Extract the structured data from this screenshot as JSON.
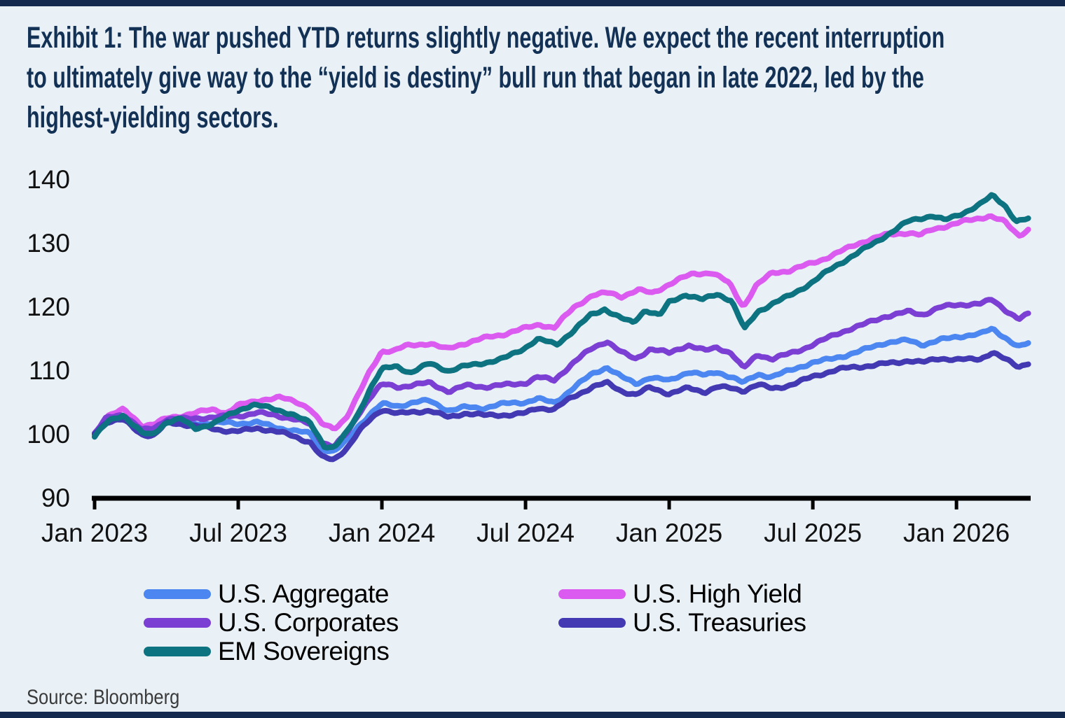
{
  "exhibit_title": {
    "lines": [
      "Exhibit 1: The war pushed YTD returns slightly negative. We expect the recent interruption",
      "to ultimately give way to the “yield is destiny” bull run that began in late 2022, led by the",
      "highest-yielding sectors."
    ]
  },
  "source": "Source: Bloomberg",
  "colors": {
    "background": "#e9f1f7",
    "accent_navy": "#13294d",
    "title_text": "#133155",
    "axis": "#000000",
    "tick_text": "#111111",
    "legend_text": "#000000",
    "source_text": "#3a3a3a"
  },
  "chart_data": {
    "type": "line",
    "title": "",
    "xlabel": "",
    "ylabel": "",
    "x_unit": "months since Jan 2023 (0 = Jan 2023)",
    "ylim": [
      90,
      140
    ],
    "y_ticks": [
      140,
      130,
      120,
      110,
      100,
      90
    ],
    "x_tick_months": [
      0,
      6,
      12,
      18,
      24,
      30,
      36
    ],
    "x_tick_labels": [
      "Jan 2023",
      "Jul 2023",
      "Jan 2024",
      "Jul 2024",
      "Jan 2025",
      "Jul 2025",
      "Jan 2026"
    ],
    "grid": false,
    "legend_position": "bottom",
    "legend_columns": [
      [
        0,
        2,
        4
      ],
      [
        1,
        3
      ]
    ],
    "series": [
      {
        "name": "U.S. Aggregate",
        "color": "#4C86F0",
        "points": [
          [
            0,
            100
          ],
          [
            0.5,
            102.1
          ],
          [
            1.2,
            102.7
          ],
          [
            2,
            100.7
          ],
          [
            2.5,
            101.0
          ],
          [
            3,
            102.2
          ],
          [
            4,
            101.9
          ],
          [
            5,
            101.7
          ],
          [
            6,
            101.6
          ],
          [
            6.8,
            102.0
          ],
          [
            7.5,
            101.4
          ],
          [
            8.3,
            100.7
          ],
          [
            9,
            100.0
          ],
          [
            9.5,
            97.6
          ],
          [
            10,
            97.2
          ],
          [
            10.6,
            99.3
          ],
          [
            11,
            101.4
          ],
          [
            11.5,
            103.4
          ],
          [
            12,
            104.9
          ],
          [
            12.7,
            104.4
          ],
          [
            13.4,
            104.9
          ],
          [
            14,
            105.2
          ],
          [
            14.8,
            103.9
          ],
          [
            15.5,
            104.5
          ],
          [
            16.3,
            104.2
          ],
          [
            17,
            104.6
          ],
          [
            18,
            105.0
          ],
          [
            18.5,
            105.7
          ],
          [
            19.2,
            105.2
          ],
          [
            20,
            107.4
          ],
          [
            20.8,
            109.4
          ],
          [
            21.4,
            110.4
          ],
          [
            22,
            109.0
          ],
          [
            22.6,
            108.1
          ],
          [
            23.2,
            109.2
          ],
          [
            24,
            108.5
          ],
          [
            24.8,
            109.7
          ],
          [
            25.5,
            109.1
          ],
          [
            26,
            109.8
          ],
          [
            26.6,
            109.2
          ],
          [
            27.1,
            108.3
          ],
          [
            27.7,
            109.6
          ],
          [
            28.3,
            109.0
          ],
          [
            29,
            109.8
          ],
          [
            30,
            111.3
          ],
          [
            31,
            112.3
          ],
          [
            32,
            113.1
          ],
          [
            33,
            114.2
          ],
          [
            34,
            114.8
          ],
          [
            34.6,
            114.3
          ],
          [
            35.3,
            115.0
          ],
          [
            36,
            115.3
          ],
          [
            37,
            115.6
          ],
          [
            37.5,
            116.5
          ],
          [
            38,
            115.4
          ],
          [
            38.6,
            113.9
          ],
          [
            39,
            114.5
          ]
        ]
      },
      {
        "name": "U.S. High Yield",
        "color": "#DB5BF0",
        "points": [
          [
            0,
            100
          ],
          [
            0.5,
            102.8
          ],
          [
            1.2,
            103.7
          ],
          [
            2,
            101.4
          ],
          [
            2.5,
            101.8
          ],
          [
            3,
            102.7
          ],
          [
            4,
            103.3
          ],
          [
            5,
            103.7
          ],
          [
            5.5,
            103.3
          ],
          [
            6,
            104.6
          ],
          [
            7,
            105.7
          ],
          [
            7.7,
            105.9
          ],
          [
            8.5,
            104.9
          ],
          [
            9,
            103.9
          ],
          [
            9.5,
            101.5
          ],
          [
            10,
            100.9
          ],
          [
            10.5,
            102.8
          ],
          [
            11,
            106.3
          ],
          [
            11.5,
            110.0
          ],
          [
            12,
            113.1
          ],
          [
            12.5,
            113.0
          ],
          [
            13,
            113.7
          ],
          [
            14,
            114.4
          ],
          [
            14.7,
            113.6
          ],
          [
            15.3,
            114.3
          ],
          [
            16,
            114.8
          ],
          [
            17,
            115.5
          ],
          [
            18,
            116.8
          ],
          [
            18.6,
            117.5
          ],
          [
            19.2,
            116.9
          ],
          [
            20,
            119.8
          ],
          [
            20.8,
            121.7
          ],
          [
            21.5,
            122.2
          ],
          [
            22,
            121.8
          ],
          [
            22.7,
            122.9
          ],
          [
            23.3,
            122.3
          ],
          [
            24,
            123.5
          ],
          [
            25,
            125.1
          ],
          [
            25.8,
            125.5
          ],
          [
            26.5,
            124.0
          ],
          [
            27.1,
            120.2
          ],
          [
            27.6,
            123.2
          ],
          [
            28.3,
            125.2
          ],
          [
            29,
            125.6
          ],
          [
            30,
            127.1
          ],
          [
            31,
            128.6
          ],
          [
            32,
            130.0
          ],
          [
            33,
            131.2
          ],
          [
            34,
            131.9
          ],
          [
            34.5,
            131.5
          ],
          [
            35,
            132.3
          ],
          [
            36,
            133.0
          ],
          [
            36.7,
            133.6
          ],
          [
            37.4,
            134.4
          ],
          [
            38,
            133.6
          ],
          [
            38.6,
            131.4
          ],
          [
            39,
            132.3
          ]
        ]
      },
      {
        "name": "U.S. Corporates",
        "color": "#7B3FD3",
        "points": [
          [
            0,
            100
          ],
          [
            0.5,
            102.4
          ],
          [
            1.2,
            103.1
          ],
          [
            2,
            100.8
          ],
          [
            2.5,
            101.2
          ],
          [
            3,
            102.6
          ],
          [
            4,
            102.3
          ],
          [
            5,
            102.6
          ],
          [
            6,
            103.1
          ],
          [
            6.8,
            103.6
          ],
          [
            7.5,
            103.0
          ],
          [
            8.3,
            102.3
          ],
          [
            9,
            101.5
          ],
          [
            9.5,
            98.9
          ],
          [
            10,
            98.3
          ],
          [
            10.6,
            100.6
          ],
          [
            11,
            103.2
          ],
          [
            11.5,
            105.8
          ],
          [
            12,
            107.7
          ],
          [
            12.7,
            107.3
          ],
          [
            13.4,
            107.9
          ],
          [
            14,
            108.3
          ],
          [
            14.8,
            106.9
          ],
          [
            15.5,
            107.6
          ],
          [
            16.3,
            107.3
          ],
          [
            17,
            107.7
          ],
          [
            18,
            108.3
          ],
          [
            18.5,
            109.2
          ],
          [
            19.2,
            108.5
          ],
          [
            20,
            111.1
          ],
          [
            20.8,
            113.5
          ],
          [
            21.4,
            114.8
          ],
          [
            22,
            113.1
          ],
          [
            22.6,
            112.0
          ],
          [
            23.2,
            113.4
          ],
          [
            24,
            112.6
          ],
          [
            24.8,
            114.0
          ],
          [
            25.5,
            113.3
          ],
          [
            26,
            113.9
          ],
          [
            26.6,
            112.9
          ],
          [
            27.1,
            110.3
          ],
          [
            27.7,
            112.4
          ],
          [
            28.3,
            111.7
          ],
          [
            29,
            112.7
          ],
          [
            30,
            114.3
          ],
          [
            31,
            115.8
          ],
          [
            32,
            116.9
          ],
          [
            33,
            118.6
          ],
          [
            34,
            119.5
          ],
          [
            34.6,
            118.9
          ],
          [
            35.3,
            119.8
          ],
          [
            36,
            120.2
          ],
          [
            37,
            120.6
          ],
          [
            37.5,
            121.4
          ],
          [
            38,
            119.9
          ],
          [
            38.6,
            118.1
          ],
          [
            39,
            118.8
          ]
        ]
      },
      {
        "name": "U.S. Treasuries",
        "color": "#4339B2",
        "points": [
          [
            0,
            100
          ],
          [
            0.5,
            101.9
          ],
          [
            1.2,
            102.4
          ],
          [
            2,
            100.2
          ],
          [
            2.5,
            100.0
          ],
          [
            3,
            101.8
          ],
          [
            4,
            101.3
          ],
          [
            5,
            100.9
          ],
          [
            6,
            100.7
          ],
          [
            6.8,
            101.0
          ],
          [
            7.5,
            100.4
          ],
          [
            8.3,
            99.6
          ],
          [
            9,
            98.9
          ],
          [
            9.5,
            96.6
          ],
          [
            10,
            96.2
          ],
          [
            10.6,
            98.2
          ],
          [
            11,
            100.2
          ],
          [
            11.5,
            102.1
          ],
          [
            12,
            103.8
          ],
          [
            12.7,
            103.3
          ],
          [
            13.4,
            103.7
          ],
          [
            14,
            104.0
          ],
          [
            14.8,
            102.6
          ],
          [
            15.5,
            103.2
          ],
          [
            16.3,
            102.9
          ],
          [
            17,
            103.2
          ],
          [
            18,
            103.5
          ],
          [
            18.5,
            104.2
          ],
          [
            19.2,
            103.8
          ],
          [
            20,
            105.8
          ],
          [
            20.8,
            107.6
          ],
          [
            21.4,
            108.3
          ],
          [
            22,
            107.0
          ],
          [
            22.6,
            106.2
          ],
          [
            23.2,
            107.2
          ],
          [
            24,
            106.3
          ],
          [
            24.8,
            107.4
          ],
          [
            25.5,
            106.9
          ],
          [
            26,
            107.6
          ],
          [
            26.6,
            107.2
          ],
          [
            27.1,
            106.7
          ],
          [
            27.7,
            107.7
          ],
          [
            28.3,
            107.2
          ],
          [
            29,
            107.9
          ],
          [
            30,
            109.2
          ],
          [
            31,
            110.0
          ],
          [
            32,
            110.6
          ],
          [
            33,
            111.3
          ],
          [
            34,
            111.7
          ],
          [
            34.6,
            111.2
          ],
          [
            35.3,
            111.8
          ],
          [
            36,
            111.7
          ],
          [
            37,
            112.1
          ],
          [
            37.5,
            113.1
          ],
          [
            38,
            111.9
          ],
          [
            38.6,
            110.5
          ],
          [
            39,
            111.1
          ]
        ]
      },
      {
        "name": "EM Sovereigns",
        "color": "#0E7380",
        "points": [
          [
            0,
            99.6
          ],
          [
            0.6,
            102.2
          ],
          [
            1.2,
            103.3
          ],
          [
            2,
            100.3
          ],
          [
            2.4,
            99.9
          ],
          [
            3,
            101.8
          ],
          [
            3.6,
            102.3
          ],
          [
            4.2,
            100.9
          ],
          [
            5,
            102.0
          ],
          [
            5.6,
            103.2
          ],
          [
            6,
            103.9
          ],
          [
            6.6,
            104.6
          ],
          [
            7.4,
            103.9
          ],
          [
            8.2,
            103.3
          ],
          [
            9,
            102.0
          ],
          [
            9.6,
            98.4
          ],
          [
            10,
            98.0
          ],
          [
            10.5,
            100.0
          ],
          [
            11,
            103.0
          ],
          [
            11.5,
            107.0
          ],
          [
            12,
            110.2
          ],
          [
            12.6,
            110.9
          ],
          [
            13.2,
            109.9
          ],
          [
            14,
            111.2
          ],
          [
            14.8,
            109.8
          ],
          [
            15.5,
            110.6
          ],
          [
            16.2,
            111.3
          ],
          [
            17,
            112.0
          ],
          [
            18,
            113.7
          ],
          [
            18.5,
            114.8
          ],
          [
            19.3,
            114.0
          ],
          [
            20,
            116.3
          ],
          [
            20.7,
            118.9
          ],
          [
            21.3,
            119.9
          ],
          [
            22,
            118.2
          ],
          [
            22.5,
            117.4
          ],
          [
            23,
            119.4
          ],
          [
            23.6,
            118.6
          ],
          [
            24,
            120.8
          ],
          [
            24.7,
            122.2
          ],
          [
            25.4,
            121.3
          ],
          [
            26,
            122.0
          ],
          [
            26.6,
            120.9
          ],
          [
            27.15,
            116.4
          ],
          [
            27.7,
            119.3
          ],
          [
            28.4,
            120.9
          ],
          [
            29,
            121.9
          ],
          [
            30,
            123.9
          ],
          [
            31,
            126.4
          ],
          [
            32,
            128.9
          ],
          [
            33,
            131.3
          ],
          [
            34,
            133.4
          ],
          [
            35,
            134.2
          ],
          [
            35.5,
            133.6
          ],
          [
            36,
            134.5
          ],
          [
            37,
            136.3
          ],
          [
            37.5,
            137.6
          ],
          [
            38,
            136.0
          ],
          [
            38.5,
            133.2
          ],
          [
            39,
            133.7
          ]
        ]
      }
    ]
  }
}
